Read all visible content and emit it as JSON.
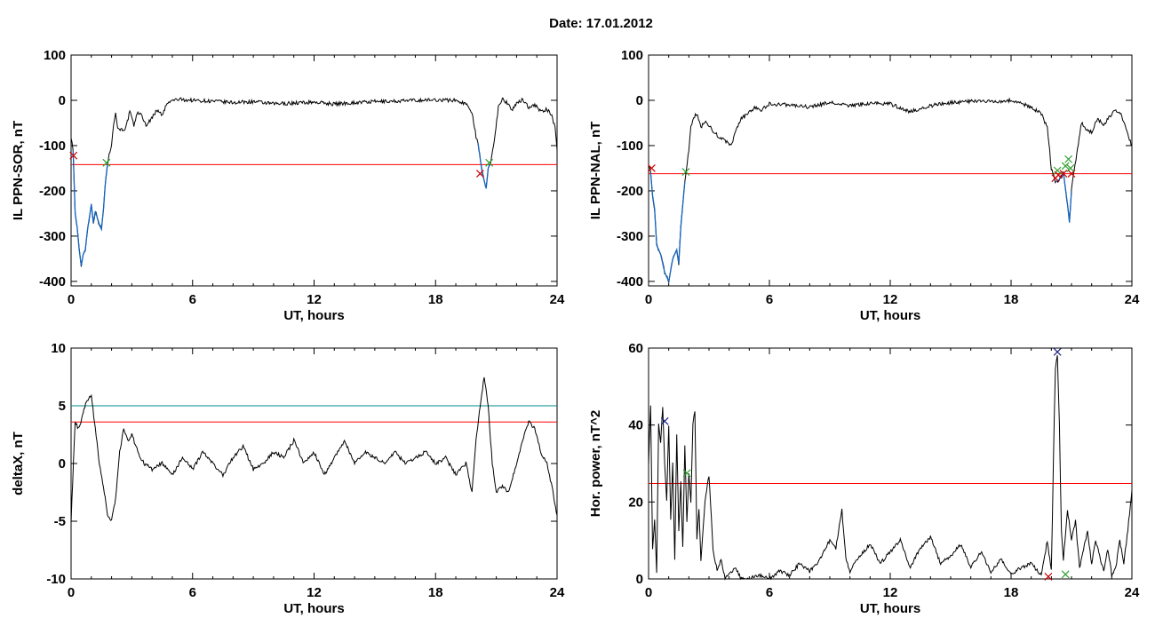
{
  "page_title": "Date:  17.01.2012",
  "colors": {
    "trace": "#000000",
    "threshold_red": "#ff0000",
    "threshold_teal": "#008b8b",
    "segment_blue": "#1565c0",
    "marker_red": "#cc0000",
    "marker_green": "#2e9e2e",
    "marker_blue": "#1a237e"
  },
  "chart_data": [
    {
      "type": "line",
      "xlabel": "UT, hours",
      "ylabel": "IL PPN-SOR, nT",
      "xlim": [
        0,
        24
      ],
      "ylim": [
        -410,
        100
      ],
      "xticks": [
        0,
        6,
        12,
        18,
        24
      ],
      "yticks": [
        -400,
        -300,
        -200,
        -100,
        0,
        100
      ],
      "threshold_lines": [
        {
          "y": -142,
          "color": "#ff0000"
        }
      ],
      "series": [
        {
          "x": [
            0,
            0.1,
            0.2,
            0.3,
            0.4,
            0.5,
            0.6,
            0.7,
            0.8,
            1.0,
            1.1,
            1.2,
            1.4,
            1.5,
            1.6,
            1.7,
            1.8,
            2.0,
            2.1,
            2.2,
            2.3,
            2.5,
            2.7,
            2.9,
            3.1,
            3.3,
            3.5,
            3.7,
            3.9,
            4.1,
            4.3,
            4.5,
            4.7,
            5.0,
            5.3,
            5.6,
            6.0,
            7.0,
            8.0,
            9.0,
            10.0,
            11.0,
            12.0,
            13.0,
            14.0,
            15.0,
            16.0,
            17.0,
            18.0,
            19.0,
            19.5,
            19.8,
            20.0,
            20.1,
            20.3,
            20.5,
            20.6,
            20.7,
            20.9,
            21.1,
            21.3,
            21.5,
            21.8,
            22.0,
            22.3,
            22.6,
            22.9,
            23.2,
            23.5,
            23.7,
            23.9,
            24.0
          ],
          "y": [
            -80,
            -110,
            -250,
            -280,
            -330,
            -365,
            -340,
            -330,
            -290,
            -230,
            -270,
            -245,
            -275,
            -285,
            -240,
            -180,
            -140,
            -95,
            -50,
            -30,
            -60,
            -65,
            -62,
            -25,
            -55,
            -25,
            -35,
            -55,
            -45,
            -30,
            -20,
            -35,
            -10,
            0,
            2,
            1,
            0,
            -2,
            -5,
            -3,
            -8,
            -6,
            -4,
            -8,
            -5,
            -3,
            -2,
            0,
            1,
            0,
            -8,
            -25,
            -80,
            -95,
            -160,
            -195,
            -150,
            -140,
            -90,
            -15,
            5,
            -5,
            -20,
            -8,
            2,
            -15,
            -10,
            -25,
            -20,
            -30,
            -60,
            -110
          ]
        }
      ]
    },
    {
      "type": "line",
      "xlabel": "UT, hours",
      "ylabel": "IL PPN-NAL, nT",
      "xlim": [
        0,
        24
      ],
      "ylim": [
        -410,
        100
      ],
      "xticks": [
        0,
        6,
        12,
        18,
        24
      ],
      "yticks": [
        -400,
        -300,
        -200,
        -100,
        0,
        100
      ],
      "threshold_lines": [
        {
          "y": -162,
          "color": "#ff0000"
        }
      ],
      "series": [
        {
          "x": [
            0,
            0.1,
            0.2,
            0.3,
            0.4,
            0.6,
            0.8,
            1.0,
            1.2,
            1.4,
            1.5,
            1.6,
            1.8,
            2.0,
            2.1,
            2.2,
            2.4,
            2.6,
            2.8,
            3.0,
            3.2,
            3.5,
            3.8,
            4.1,
            4.4,
            4.6,
            4.8,
            5.0,
            5.3,
            5.6,
            6.0,
            7.0,
            8.0,
            9.0,
            10.0,
            11.0,
            12.0,
            13.0,
            14.0,
            15.0,
            16.0,
            17.0,
            18.0,
            19.0,
            19.5,
            19.8,
            20.0,
            20.2,
            20.4,
            20.6,
            20.8,
            20.9,
            21.0,
            21.1,
            21.3,
            21.5,
            21.7,
            22.0,
            22.3,
            22.6,
            22.9,
            23.2,
            23.5,
            23.8,
            24.0
          ],
          "y": [
            -140,
            -160,
            -210,
            -240,
            -320,
            -340,
            -380,
            -400,
            -350,
            -330,
            -360,
            -280,
            -180,
            -110,
            -60,
            -40,
            -30,
            -60,
            -45,
            -55,
            -70,
            -80,
            -90,
            -100,
            -60,
            -40,
            -35,
            -25,
            -15,
            -22,
            -8,
            -10,
            -15,
            -5,
            -12,
            -6,
            -8,
            -25,
            -12,
            -5,
            -2,
            -3,
            0,
            -15,
            -30,
            -60,
            -150,
            -180,
            -175,
            -160,
            -230,
            -270,
            -200,
            -160,
            -110,
            -50,
            -65,
            -70,
            -40,
            -55,
            -35,
            -20,
            -35,
            -75,
            -100
          ]
        }
      ]
    },
    {
      "type": "line",
      "xlabel": "UT, hours",
      "ylabel": "deltaX, nT",
      "xlim": [
        0,
        24
      ],
      "ylim": [
        -10,
        10
      ],
      "xticks": [
        0,
        6,
        12,
        18,
        24
      ],
      "yticks": [
        -10,
        -5,
        0,
        5,
        10
      ],
      "threshold_lines": [
        {
          "y": 5,
          "color": "#008b8b"
        },
        {
          "y": 3.6,
          "color": "#ff0000"
        }
      ],
      "series": [
        {
          "x": [
            0,
            0.2,
            0.4,
            0.6,
            0.8,
            1.0,
            1.2,
            1.4,
            1.6,
            1.8,
            2.0,
            2.2,
            2.4,
            2.6,
            2.8,
            3.0,
            3.3,
            3.6,
            4.0,
            4.5,
            5.0,
            5.5,
            6.0,
            6.5,
            7.0,
            7.5,
            8.0,
            8.5,
            9.0,
            9.5,
            10.0,
            10.5,
            11.0,
            11.5,
            12.0,
            12.5,
            13.0,
            13.5,
            14.0,
            14.5,
            15.0,
            15.5,
            16.0,
            16.5,
            17.0,
            17.5,
            18.0,
            18.5,
            19.0,
            19.5,
            19.8,
            20.0,
            20.2,
            20.4,
            20.6,
            20.8,
            21.0,
            21.3,
            21.6,
            22.0,
            22.3,
            22.6,
            22.9,
            23.2,
            23.5,
            23.8,
            24.0
          ],
          "y": [
            -5,
            3.5,
            3,
            4.5,
            5.5,
            5.8,
            3,
            0,
            -2,
            -4.5,
            -5,
            -3,
            1,
            3,
            2,
            2.5,
            1,
            0,
            -0.5,
            0,
            -1,
            0.5,
            -0.5,
            1,
            0,
            -1,
            0.5,
            1.5,
            -0.5,
            0,
            1,
            0.5,
            2,
            0,
            1,
            -1,
            0.5,
            2,
            0,
            1,
            0.5,
            0,
            1,
            0,
            0.5,
            1,
            0,
            0.5,
            -1,
            0,
            -2.5,
            2,
            5,
            7.5,
            5,
            0,
            -2.5,
            -2,
            -2.5,
            0,
            2,
            3.7,
            3,
            1,
            0,
            -2.5,
            -4.5
          ]
        }
      ]
    },
    {
      "type": "line",
      "xlabel": "UT, hours",
      "ylabel": "Hor. power, nT^2",
      "xlim": [
        0,
        24
      ],
      "ylim": [
        0,
        60
      ],
      "xticks": [
        0,
        6,
        12,
        18,
        24
      ],
      "yticks": [
        0,
        20,
        40,
        60
      ],
      "threshold_lines": [
        {
          "y": 24.8,
          "color": "#ff0000"
        }
      ],
      "series": [
        {
          "x": [
            0,
            0.1,
            0.2,
            0.3,
            0.4,
            0.5,
            0.6,
            0.7,
            0.8,
            0.9,
            1.0,
            1.1,
            1.2,
            1.3,
            1.4,
            1.5,
            1.6,
            1.7,
            1.8,
            1.9,
            2.0,
            2.1,
            2.2,
            2.3,
            2.4,
            2.5,
            2.6,
            2.8,
            3.0,
            3.2,
            3.4,
            3.6,
            3.8,
            4.0,
            4.3,
            4.6,
            5.0,
            5.5,
            6.0,
            6.5,
            7.0,
            7.5,
            8.0,
            8.5,
            9.0,
            9.3,
            9.6,
            9.8,
            10.0,
            10.5,
            11.0,
            11.5,
            12.0,
            12.5,
            13.0,
            13.5,
            14.0,
            14.5,
            15.0,
            15.5,
            16.0,
            16.5,
            17.0,
            17.5,
            18.0,
            18.5,
            19.0,
            19.5,
            19.8,
            20.0,
            20.1,
            20.2,
            20.3,
            20.4,
            20.5,
            20.6,
            20.8,
            21.0,
            21.2,
            21.4,
            21.6,
            21.8,
            22.0,
            22.2,
            22.4,
            22.6,
            22.8,
            23.0,
            23.2,
            23.4,
            23.6,
            23.8,
            24.0
          ],
          "y": [
            30,
            45,
            8,
            15,
            2,
            40,
            35,
            45,
            30,
            20,
            40,
            15,
            30,
            5,
            38,
            12,
            25,
            8,
            35,
            15,
            27,
            20,
            40,
            44,
            10,
            18,
            5,
            20,
            27,
            8,
            2,
            5,
            0,
            1,
            3,
            0,
            0,
            1,
            0,
            2,
            1,
            4,
            2,
            5,
            10,
            8,
            18,
            5,
            2,
            6,
            9,
            4,
            7,
            10,
            3,
            8,
            11,
            4,
            6,
            9,
            3,
            7,
            2,
            5,
            1,
            3,
            4,
            1,
            10,
            2,
            30,
            55,
            58,
            40,
            12,
            5,
            18,
            10,
            15,
            3,
            8,
            12,
            4,
            10,
            6,
            2,
            8,
            1,
            3,
            10,
            4,
            13,
            23
          ]
        }
      ]
    }
  ]
}
